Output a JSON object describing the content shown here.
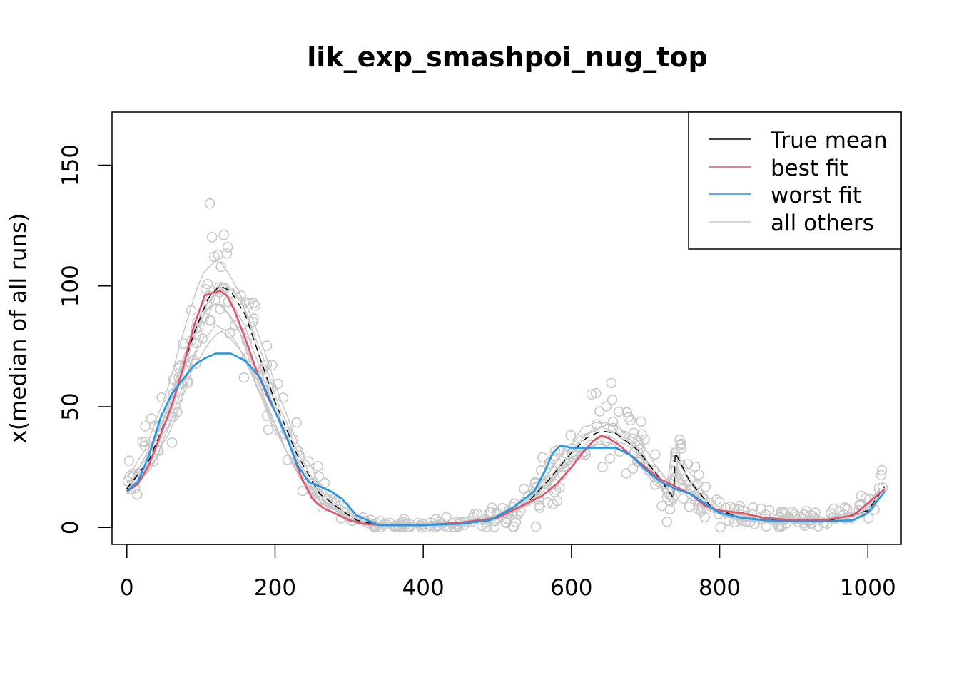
{
  "chart_data": {
    "type": "line",
    "title": "lik_exp_smashpoi_nug_top",
    "xlabel": "",
    "ylabel": "x(median of all runs)",
    "xlim": [
      -20,
      1045
    ],
    "ylim": [
      -7,
      172
    ],
    "x_ticks": [
      0,
      200,
      400,
      600,
      800,
      1000
    ],
    "x_tick_labels": [
      "0",
      "200",
      "400",
      "600",
      "800",
      "1000"
    ],
    "y_ticks": [
      0,
      50,
      100,
      150
    ],
    "y_tick_labels": [
      "0",
      "50",
      "100",
      "150"
    ],
    "grid": false,
    "legend_position": "top-right",
    "colors": {
      "true_mean": "#000000",
      "best_fit": "#DF536B",
      "worst_fit": "#2297E6",
      "others": "#C8C8C8"
    },
    "series": [
      {
        "name": "True mean",
        "color": "#000000",
        "style": "dashed",
        "x": [
          0,
          30,
          60,
          90,
          110,
          125,
          140,
          160,
          180,
          200,
          230,
          260,
          290,
          310,
          340,
          400,
          450,
          500,
          540,
          570,
          600,
          620,
          640,
          660,
          690,
          720,
          738,
          740,
          760,
          790,
          830,
          880,
          950,
          1000,
          1023
        ],
        "y": [
          16,
          28,
          50,
          80,
          95,
          100,
          98,
          88,
          70,
          52,
          30,
          14,
          7,
          3,
          1,
          1,
          1.5,
          4,
          10,
          20,
          31,
          37,
          40,
          39,
          32,
          20,
          12,
          31,
          19,
          8,
          4,
          3,
          3,
          7,
          17
        ]
      },
      {
        "name": "best fit",
        "color": "#DF536B",
        "x": [
          0,
          15,
          30,
          45,
          60,
          75,
          90,
          105,
          115,
          125,
          135,
          145,
          160,
          175,
          190,
          205,
          220,
          235,
          250,
          265,
          280,
          300,
          320,
          350,
          400,
          450,
          500,
          520,
          540,
          560,
          580,
          600,
          615,
          630,
          640,
          650,
          665,
          680,
          700,
          720,
          740,
          760,
          780,
          800,
          830,
          860,
          900,
          940,
          980,
          1000,
          1023
        ],
        "y": [
          15,
          18,
          26,
          38,
          50,
          65,
          83,
          96,
          97,
          98,
          96,
          90,
          78,
          65,
          54,
          45,
          34,
          21,
          12,
          8,
          6,
          3,
          1.5,
          1,
          1,
          2,
          4,
          7,
          10,
          13,
          18,
          25,
          31,
          36,
          38,
          37,
          34,
          30,
          25,
          20,
          17,
          14,
          9,
          7,
          6,
          4,
          3,
          3,
          5,
          10,
          16
        ]
      },
      {
        "name": "worst fit",
        "color": "#2297E6",
        "x": [
          0,
          15,
          30,
          45,
          60,
          75,
          90,
          105,
          120,
          140,
          160,
          180,
          200,
          215,
          230,
          245,
          260,
          275,
          290,
          310,
          340,
          400,
          450,
          490,
          520,
          550,
          565,
          575,
          585,
          600,
          620,
          640,
          660,
          680,
          700,
          720,
          740,
          760,
          780,
          800,
          830,
          860,
          900,
          940,
          980,
          1000,
          1023
        ],
        "y": [
          15,
          19,
          30,
          45,
          55,
          61,
          67,
          70,
          72,
          72,
          69,
          62,
          48,
          38,
          26,
          19,
          17,
          15,
          12,
          5,
          1,
          1,
          1.5,
          3,
          8,
          15,
          24,
          31,
          34,
          33,
          33,
          33,
          33,
          30,
          24,
          19,
          16,
          14,
          10,
          6,
          4,
          3,
          2.5,
          2.5,
          3,
          6,
          15
        ]
      }
    ],
    "others_count": 8,
    "others_points_count": 420
  },
  "legend": {
    "items": [
      {
        "label": "True mean",
        "color": "#000000"
      },
      {
        "label": "best fit",
        "color": "#DF536B"
      },
      {
        "label": "worst fit",
        "color": "#2297E6"
      },
      {
        "label": "all others",
        "color": "#C8C8C8"
      }
    ]
  }
}
